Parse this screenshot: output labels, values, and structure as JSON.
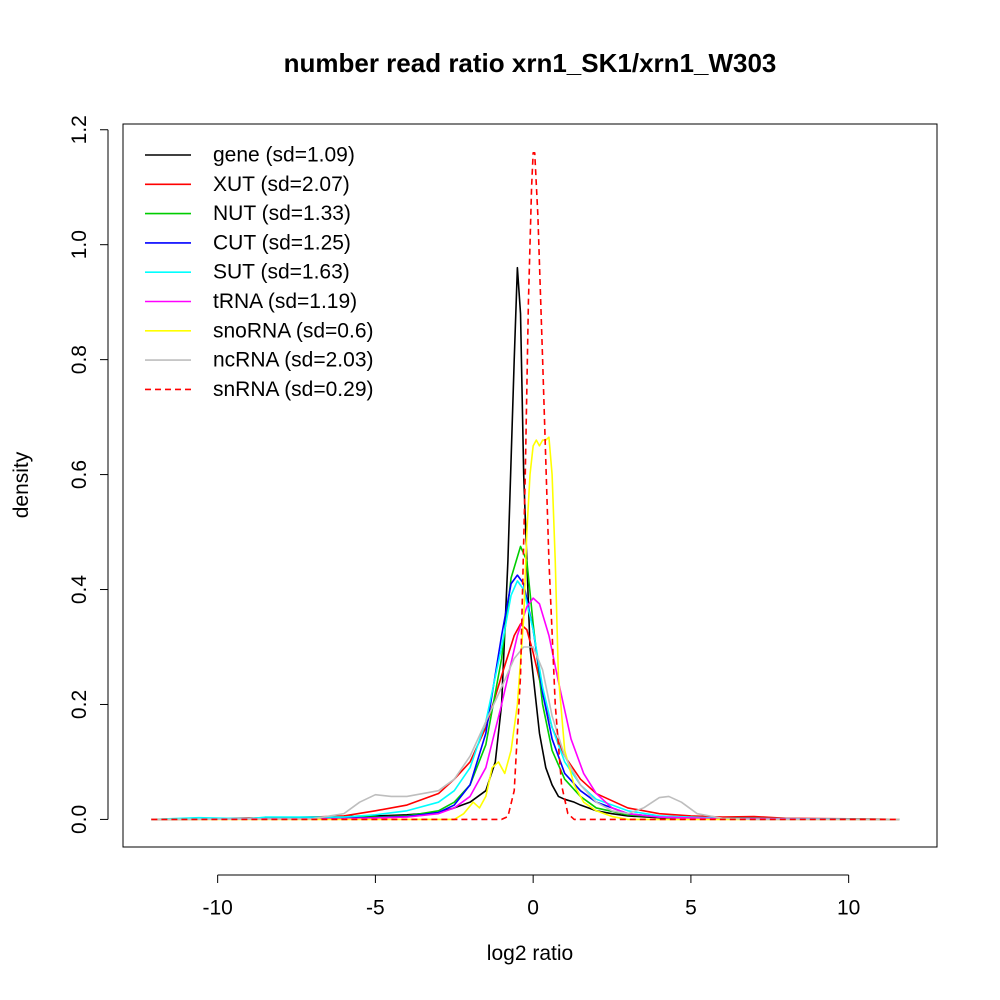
{
  "chart_data": {
    "type": "line",
    "title": "number read ratio xrn1_SK1/xrn1_W303",
    "xlabel": "log2 ratio",
    "ylabel": "density",
    "xlim": [
      -13,
      12.8
    ],
    "ylim": [
      -0.048,
      1.21
    ],
    "x_ticks": [
      -10,
      -5,
      0,
      5,
      10
    ],
    "x_tick_labels": [
      "-10",
      "-5",
      "0",
      "5",
      "10"
    ],
    "y_ticks": [
      0.0,
      0.2,
      0.4,
      0.6,
      0.8,
      1.0,
      1.2
    ],
    "y_tick_labels": [
      "0.0",
      "0.2",
      "0.4",
      "0.6",
      "0.8",
      "1.0",
      "1.2"
    ],
    "grid": false,
    "legend_position": "top-left",
    "series": [
      {
        "name": "gene (sd=1.09)",
        "color": "#000000",
        "dash": "solid",
        "points": [
          [
            -12.1,
            0
          ],
          [
            -9,
            0.002
          ],
          [
            -7,
            0.004
          ],
          [
            -5,
            0.006
          ],
          [
            -4,
            0.008
          ],
          [
            -3,
            0.012
          ],
          [
            -2.5,
            0.02
          ],
          [
            -2,
            0.03
          ],
          [
            -1.5,
            0.05
          ],
          [
            -1.2,
            0.1
          ],
          [
            -1,
            0.2
          ],
          [
            -0.8,
            0.45
          ],
          [
            -0.6,
            0.8
          ],
          [
            -0.5,
            0.96
          ],
          [
            -0.4,
            0.88
          ],
          [
            -0.3,
            0.6
          ],
          [
            -0.1,
            0.3
          ],
          [
            0,
            0.25
          ],
          [
            0.2,
            0.15
          ],
          [
            0.4,
            0.09
          ],
          [
            0.6,
            0.06
          ],
          [
            0.8,
            0.04
          ],
          [
            1,
            0.035
          ],
          [
            1.3,
            0.03
          ],
          [
            1.5,
            0.025
          ],
          [
            2,
            0.015
          ],
          [
            2.5,
            0.01
          ],
          [
            3,
            0.006
          ],
          [
            4,
            0.003
          ],
          [
            6,
            0.002
          ],
          [
            11.6,
            0
          ]
        ]
      },
      {
        "name": "XUT (sd=2.07)",
        "color": "#ff0000",
        "dash": "solid",
        "points": [
          [
            -12.1,
            0
          ],
          [
            -10,
            0.001
          ],
          [
            -8,
            0.002
          ],
          [
            -6,
            0.006
          ],
          [
            -5,
            0.015
          ],
          [
            -4,
            0.025
          ],
          [
            -3,
            0.045
          ],
          [
            -2.5,
            0.07
          ],
          [
            -2,
            0.1
          ],
          [
            -1.5,
            0.16
          ],
          [
            -1,
            0.25
          ],
          [
            -0.6,
            0.32
          ],
          [
            -0.4,
            0.34
          ],
          [
            -0.2,
            0.33
          ],
          [
            0,
            0.29
          ],
          [
            0.3,
            0.22
          ],
          [
            0.6,
            0.16
          ],
          [
            1,
            0.11
          ],
          [
            1.5,
            0.07
          ],
          [
            2,
            0.045
          ],
          [
            3,
            0.02
          ],
          [
            4,
            0.01
          ],
          [
            5,
            0.006
          ],
          [
            6,
            0.004
          ],
          [
            7,
            0.005
          ],
          [
            8,
            0.002
          ],
          [
            10,
            0.001
          ],
          [
            11.6,
            0
          ]
        ]
      },
      {
        "name": "NUT (sd=1.33)",
        "color": "#00cd00",
        "dash": "solid",
        "points": [
          [
            -12.1,
            0
          ],
          [
            -8,
            0.001
          ],
          [
            -5,
            0.004
          ],
          [
            -4,
            0.006
          ],
          [
            -3,
            0.015
          ],
          [
            -2.5,
            0.03
          ],
          [
            -2,
            0.06
          ],
          [
            -1.5,
            0.13
          ],
          [
            -1,
            0.28
          ],
          [
            -0.7,
            0.42
          ],
          [
            -0.4,
            0.475
          ],
          [
            -0.2,
            0.45
          ],
          [
            0,
            0.34
          ],
          [
            0.3,
            0.2
          ],
          [
            0.6,
            0.12
          ],
          [
            1,
            0.07
          ],
          [
            1.5,
            0.04
          ],
          [
            2,
            0.02
          ],
          [
            3,
            0.008
          ],
          [
            4,
            0.004
          ],
          [
            6,
            0.001
          ],
          [
            11.6,
            0
          ]
        ]
      },
      {
        "name": "CUT (sd=1.25)",
        "color": "#0000ff",
        "dash": "solid",
        "points": [
          [
            -12.1,
            0
          ],
          [
            -8,
            0.001
          ],
          [
            -5,
            0.003
          ],
          [
            -4,
            0.005
          ],
          [
            -3,
            0.012
          ],
          [
            -2.5,
            0.025
          ],
          [
            -2,
            0.06
          ],
          [
            -1.5,
            0.15
          ],
          [
            -1,
            0.32
          ],
          [
            -0.7,
            0.41
          ],
          [
            -0.5,
            0.425
          ],
          [
            -0.3,
            0.41
          ],
          [
            0,
            0.33
          ],
          [
            0.3,
            0.22
          ],
          [
            0.6,
            0.14
          ],
          [
            1,
            0.08
          ],
          [
            1.5,
            0.05
          ],
          [
            2,
            0.03
          ],
          [
            3,
            0.01
          ],
          [
            4,
            0.004
          ],
          [
            6,
            0.001
          ],
          [
            11.6,
            0
          ]
        ]
      },
      {
        "name": "SUT (sd=1.63)",
        "color": "#00ffff",
        "dash": "solid",
        "points": [
          [
            -12.1,
            0
          ],
          [
            -10.6,
            0.003
          ],
          [
            -9,
            0.001
          ],
          [
            -8.5,
            0.004
          ],
          [
            -6,
            0.004
          ],
          [
            -5,
            0.008
          ],
          [
            -4,
            0.015
          ],
          [
            -3,
            0.03
          ],
          [
            -2.5,
            0.05
          ],
          [
            -2,
            0.09
          ],
          [
            -1.5,
            0.17
          ],
          [
            -1,
            0.3
          ],
          [
            -0.7,
            0.39
          ],
          [
            -0.5,
            0.415
          ],
          [
            -0.3,
            0.4
          ],
          [
            0,
            0.33
          ],
          [
            0.3,
            0.23
          ],
          [
            0.6,
            0.16
          ],
          [
            1,
            0.1
          ],
          [
            1.5,
            0.06
          ],
          [
            2,
            0.035
          ],
          [
            3,
            0.015
          ],
          [
            4,
            0.006
          ],
          [
            6,
            0.002
          ],
          [
            11.6,
            0
          ]
        ]
      },
      {
        "name": "tRNA (sd=1.19)",
        "color": "#ff00ff",
        "dash": "solid",
        "points": [
          [
            -12.1,
            0
          ],
          [
            -6,
            0.001
          ],
          [
            -4,
            0.004
          ],
          [
            -3,
            0.01
          ],
          [
            -2.5,
            0.02
          ],
          [
            -2,
            0.04
          ],
          [
            -1.5,
            0.09
          ],
          [
            -1,
            0.2
          ],
          [
            -0.5,
            0.32
          ],
          [
            -0.2,
            0.37
          ],
          [
            0,
            0.385
          ],
          [
            0.2,
            0.375
          ],
          [
            0.5,
            0.32
          ],
          [
            0.8,
            0.24
          ],
          [
            1.2,
            0.14
          ],
          [
            1.6,
            0.08
          ],
          [
            2,
            0.045
          ],
          [
            2.5,
            0.02
          ],
          [
            3,
            0.01
          ],
          [
            4,
            0.004
          ],
          [
            6,
            0.001
          ],
          [
            11.6,
            0
          ]
        ]
      },
      {
        "name": "snoRNA (sd=0.6)",
        "color": "#ffff00",
        "dash": "solid",
        "points": [
          [
            -12.1,
            0
          ],
          [
            -2.5,
            0
          ],
          [
            -2.2,
            0.01
          ],
          [
            -1.9,
            0.03
          ],
          [
            -1.7,
            0.02
          ],
          [
            -1.5,
            0.04
          ],
          [
            -1.3,
            0.09
          ],
          [
            -1.1,
            0.1
          ],
          [
            -0.9,
            0.08
          ],
          [
            -0.7,
            0.12
          ],
          [
            -0.5,
            0.2
          ],
          [
            -0.3,
            0.35
          ],
          [
            -0.2,
            0.5
          ],
          [
            -0.1,
            0.6
          ],
          [
            0,
            0.65
          ],
          [
            0.1,
            0.66
          ],
          [
            0.2,
            0.65
          ],
          [
            0.3,
            0.66
          ],
          [
            0.4,
            0.66
          ],
          [
            0.5,
            0.665
          ],
          [
            0.6,
            0.6
          ],
          [
            0.7,
            0.45
          ],
          [
            0.8,
            0.25
          ],
          [
            1,
            0.12
          ],
          [
            1.3,
            0.06
          ],
          [
            1.6,
            0.03
          ],
          [
            2,
            0.015
          ],
          [
            2.5,
            0.005
          ],
          [
            3,
            0
          ],
          [
            11.6,
            0
          ]
        ]
      },
      {
        "name": "ncRNA (sd=2.03)",
        "color": "#bebebe",
        "dash": "solid",
        "points": [
          [
            -12.1,
            0
          ],
          [
            -7,
            0.001
          ],
          [
            -6,
            0.01
          ],
          [
            -5.5,
            0.03
          ],
          [
            -5,
            0.043
          ],
          [
            -4.5,
            0.04
          ],
          [
            -4,
            0.04
          ],
          [
            -3.5,
            0.045
          ],
          [
            -3,
            0.05
          ],
          [
            -2.5,
            0.07
          ],
          [
            -2,
            0.11
          ],
          [
            -1.5,
            0.17
          ],
          [
            -1,
            0.23
          ],
          [
            -0.6,
            0.28
          ],
          [
            -0.3,
            0.3
          ],
          [
            0,
            0.3
          ],
          [
            0.3,
            0.26
          ],
          [
            0.6,
            0.18
          ],
          [
            1,
            0.11
          ],
          [
            1.5,
            0.06
          ],
          [
            2,
            0.03
          ],
          [
            2.5,
            0.015
          ],
          [
            3,
            0.01
          ],
          [
            3.5,
            0.02
          ],
          [
            4,
            0.038
          ],
          [
            4.3,
            0.04
          ],
          [
            4.7,
            0.03
          ],
          [
            5.2,
            0.01
          ],
          [
            6,
            0.002
          ],
          [
            7,
            0
          ],
          [
            11.6,
            0
          ]
        ]
      },
      {
        "name": "snRNA (sd=0.29)",
        "color": "#ff0000",
        "dash": "dashed",
        "points": [
          [
            -12.1,
            0
          ],
          [
            -1,
            0
          ],
          [
            -0.8,
            0.005
          ],
          [
            -0.6,
            0.05
          ],
          [
            -0.4,
            0.25
          ],
          [
            -0.25,
            0.6
          ],
          [
            -0.15,
            0.9
          ],
          [
            -0.05,
            1.1
          ],
          [
            0,
            1.16
          ],
          [
            0.05,
            1.16
          ],
          [
            0.15,
            1.05
          ],
          [
            0.3,
            0.8
          ],
          [
            0.5,
            0.45
          ],
          [
            0.7,
            0.2
          ],
          [
            0.9,
            0.06
          ],
          [
            1.1,
            0.01
          ],
          [
            1.3,
            0
          ],
          [
            11.6,
            0
          ]
        ]
      }
    ]
  }
}
